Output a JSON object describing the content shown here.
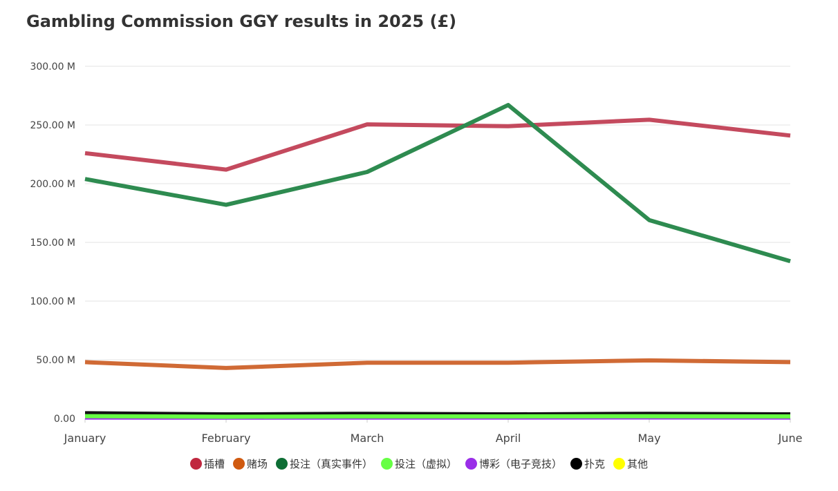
{
  "chart_data": {
    "type": "line",
    "title": "Gambling Commission GGY results in 2025 (£)",
    "xlabel": "",
    "ylabel": "",
    "categories": [
      "January",
      "February",
      "March",
      "April",
      "May",
      "June"
    ],
    "ylim": [
      0,
      300000000
    ],
    "yticks": [
      {
        "value": 0,
        "label": "0.00"
      },
      {
        "value": 50000000,
        "label": "50.00 M"
      },
      {
        "value": 100000000,
        "label": "100.00 M"
      },
      {
        "value": 150000000,
        "label": "150.00 M"
      },
      {
        "value": 200000000,
        "label": "200.00 M"
      },
      {
        "value": 250000000,
        "label": "250.00 M"
      },
      {
        "value": 300000000,
        "label": "300.00 M"
      }
    ],
    "grid": true,
    "legend_position": "bottom",
    "series": [
      {
        "name": "插槽",
        "color": "#c44a5e",
        "legend_color": "#c0283f",
        "values": [
          226000000,
          212000000,
          250500000,
          249000000,
          254500000,
          241000000
        ]
      },
      {
        "name": "赌场",
        "color": "#d06a35",
        "legend_color": "#d05a10",
        "values": [
          48000000,
          43000000,
          47500000,
          47500000,
          49500000,
          48000000
        ]
      },
      {
        "name": "投注（真实事件）",
        "color": "#2e8b50",
        "legend_color": "#0e6e35",
        "values": [
          204000000,
          182000000,
          210000000,
          267000000,
          169000000,
          134000000
        ]
      },
      {
        "name": "投注（虚拟）",
        "color": "#66ff44",
        "legend_color": "#66ff44",
        "values": [
          2000000,
          1500000,
          1800000,
          1800000,
          1900000,
          1800000
        ]
      },
      {
        "name": "博彩（电子竞技）",
        "color": "#9a2ee8",
        "legend_color": "#9a2ee8",
        "values": [
          800000,
          700000,
          800000,
          800000,
          900000,
          800000
        ]
      },
      {
        "name": "扑克",
        "color": "#111111",
        "legend_color": "#000000",
        "values": [
          4500000,
          3500000,
          4000000,
          3500000,
          4000000,
          3500000
        ]
      },
      {
        "name": "其他",
        "color": "#f5e81a",
        "legend_color": "#ffff00",
        "values": [
          1200000,
          1000000,
          1100000,
          1100000,
          1200000,
          1100000
        ]
      }
    ]
  }
}
